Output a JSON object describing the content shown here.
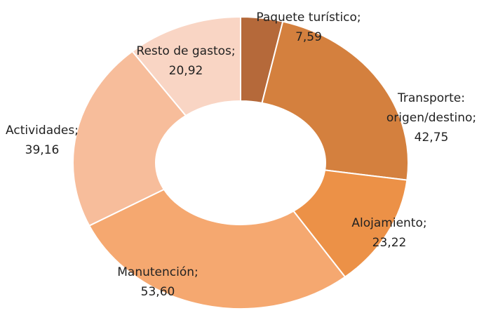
{
  "chart_data": {
    "type": "donut",
    "categories": [
      "Paquete turístico;",
      "Transporte:\norigen/destino;",
      "Alojamiento;",
      "Manutención;",
      "Actividades;",
      "Resto de gastos;"
    ],
    "values": [
      7.59,
      42.75,
      23.22,
      53.6,
      39.16,
      20.92
    ],
    "value_labels": [
      "7,59",
      "42,75",
      "23,22",
      "53,60",
      "39,16",
      "20,92"
    ],
    "colors": [
      "#b5693a",
      "#d4803e",
      "#ec9147",
      "#f5a870",
      "#f7bd9b",
      "#f9d5c4"
    ]
  }
}
